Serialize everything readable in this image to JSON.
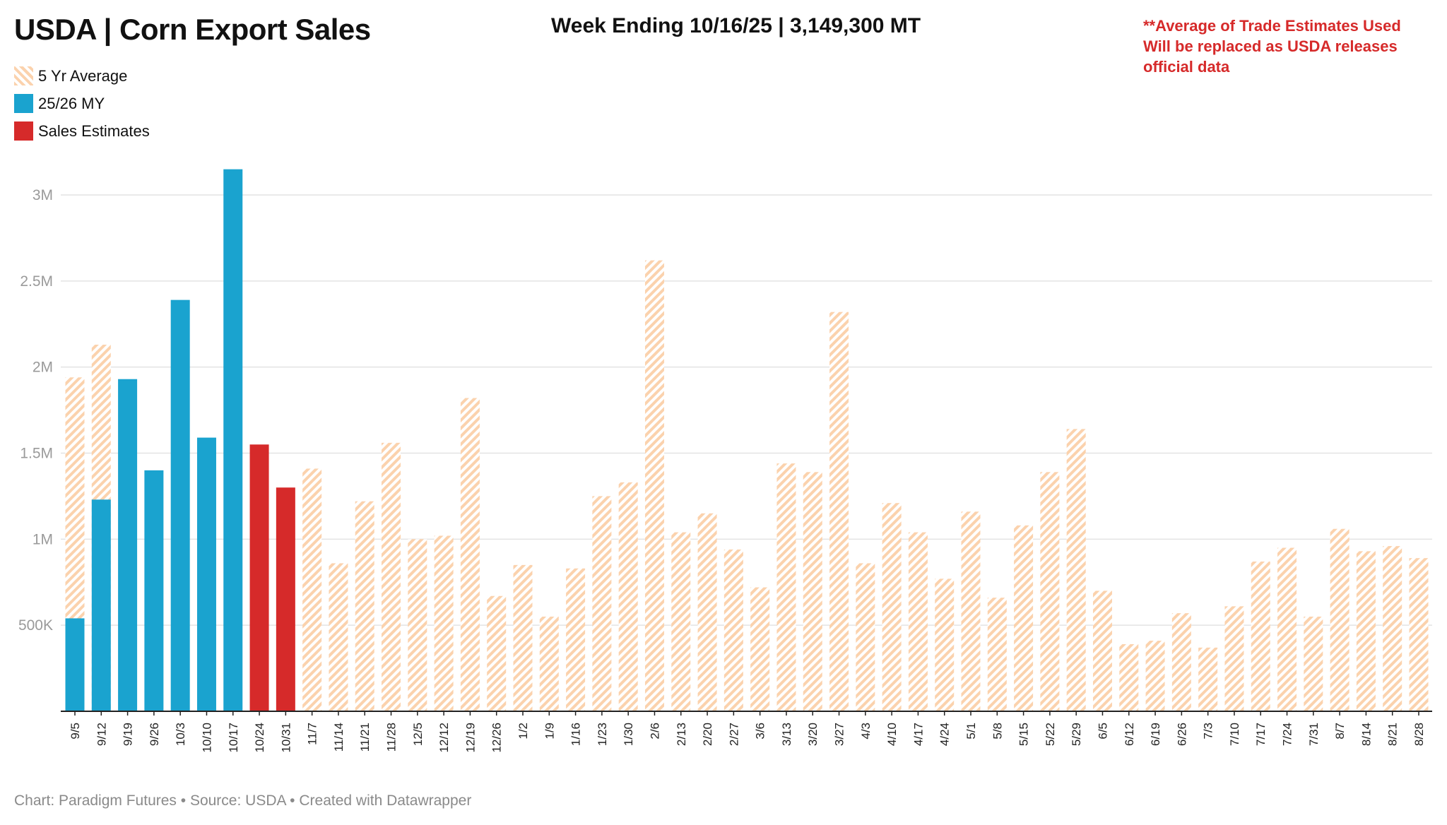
{
  "chart_data": {
    "type": "bar",
    "title": "USDA | Corn Export Sales",
    "subtitle": "Week Ending 10/16/25 | 3,149,300 MT",
    "note": [
      "**Average of Trade Estimates Used",
      "Will be replaced as USDA releases",
      "official data"
    ],
    "footer": "Chart: Paradigm Futures • Source: USDA • Created with Datawrapper",
    "legend": [
      {
        "name": "5 Yr Average",
        "color": "#fbd2ad",
        "pattern": "hatched"
      },
      {
        "name": "25/26 MY",
        "color": "#1aa3cf"
      },
      {
        "name": "Sales Estimates",
        "color": "#d62a2a"
      }
    ],
    "legend_position": "top-left",
    "ylim": [
      0,
      3150000
    ],
    "yticks": [
      500000,
      1000000,
      1500000,
      2000000,
      2500000,
      3000000
    ],
    "ytick_labels": [
      "500K",
      "1M",
      "1.5M",
      "2M",
      "2.5M",
      "3M"
    ],
    "grid": true,
    "categories": [
      "9/5",
      "9/12",
      "9/19",
      "9/26",
      "10/3",
      "10/10",
      "10/17",
      "10/24",
      "10/31",
      "11/7",
      "11/14",
      "11/21",
      "11/28",
      "12/5",
      "12/12",
      "12/19",
      "12/26",
      "1/2",
      "1/9",
      "1/16",
      "1/23",
      "1/30",
      "2/6",
      "2/13",
      "2/20",
      "2/27",
      "3/6",
      "3/13",
      "3/20",
      "3/27",
      "4/3",
      "4/10",
      "4/17",
      "4/24",
      "5/1",
      "5/8",
      "5/15",
      "5/22",
      "5/29",
      "6/5",
      "6/12",
      "6/19",
      "6/26",
      "7/3",
      "7/10",
      "7/17",
      "7/24",
      "7/31",
      "8/7",
      "8/14",
      "8/21",
      "8/28"
    ],
    "series": [
      {
        "name": "5 Yr Average",
        "values": [
          1940000,
          2130000,
          null,
          null,
          null,
          null,
          null,
          null,
          null,
          1410000,
          860000,
          1220000,
          1560000,
          1000000,
          1020000,
          1820000,
          670000,
          850000,
          550000,
          830000,
          1250000,
          1330000,
          2620000,
          1040000,
          1150000,
          940000,
          720000,
          1440000,
          1390000,
          2320000,
          860000,
          1210000,
          1040000,
          770000,
          1160000,
          660000,
          1080000,
          1390000,
          1640000,
          700000,
          390000,
          410000,
          570000,
          370000,
          610000,
          870000,
          950000,
          550000,
          1060000,
          930000,
          960000,
          890000
        ]
      },
      {
        "name": "25/26 MY",
        "values": [
          540000,
          1230000,
          1930000,
          1400000,
          2390000,
          1590000,
          3149300,
          null,
          null,
          null,
          null,
          null,
          null,
          null,
          null,
          null,
          null,
          null,
          null,
          null,
          null,
          null,
          null,
          null,
          null,
          null,
          null,
          null,
          null,
          null,
          null,
          null,
          null,
          null,
          null,
          null,
          null,
          null,
          null,
          null,
          null,
          null,
          null,
          null,
          null,
          null,
          null,
          null,
          null,
          null,
          null,
          null
        ]
      },
      {
        "name": "Sales Estimates",
        "values": [
          null,
          null,
          null,
          null,
          null,
          null,
          null,
          1550000,
          1300000,
          null,
          null,
          null,
          null,
          null,
          null,
          null,
          null,
          null,
          null,
          null,
          null,
          null,
          null,
          null,
          null,
          null,
          null,
          null,
          null,
          null,
          null,
          null,
          null,
          null,
          null,
          null,
          null,
          null,
          null,
          null,
          null,
          null,
          null,
          null,
          null,
          null,
          null,
          null,
          null,
          null,
          null,
          null
        ]
      }
    ]
  }
}
